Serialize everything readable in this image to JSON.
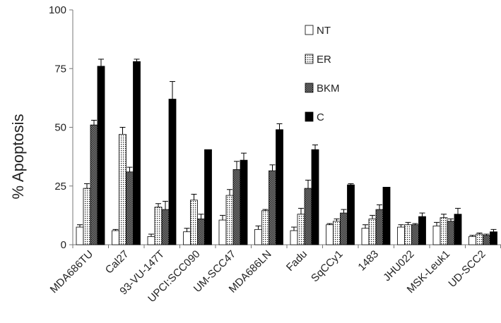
{
  "chart_data": {
    "type": "bar",
    "title": "",
    "xlabel": "",
    "ylabel": "% Apoptosis",
    "ylim": [
      0,
      100
    ],
    "yticks": [
      0,
      25,
      50,
      75,
      100
    ],
    "grid": false,
    "legend_position": "top-right",
    "categories": [
      "MDA686TU",
      "Cal27",
      "93-VU-147T",
      "UPCI:SCC090",
      "UM-SCC47",
      "MDA686LN",
      "Fadu",
      "SqCCy1",
      "1483",
      "JHU022",
      "MSK-Leuk1",
      "UD-SCC2"
    ],
    "series": [
      {
        "name": "NT",
        "pattern": "white",
        "values": [
          7.5,
          6,
          3.5,
          5.5,
          10.5,
          6.5,
          6,
          8.5,
          7,
          7.5,
          8,
          3.5
        ],
        "errors": [
          1,
          0.5,
          1,
          1.5,
          2,
          1.5,
          1.5,
          0.5,
          1.5,
          1,
          1.5,
          0.5
        ]
      },
      {
        "name": "ER",
        "pattern": "dotted",
        "values": [
          24,
          47,
          16,
          19,
          21,
          14.5,
          13,
          10,
          11,
          8.5,
          11.5,
          4.5
        ],
        "errors": [
          2,
          3,
          1.5,
          2.5,
          2.5,
          0.5,
          2.5,
          1,
          1.5,
          1,
          1.5,
          0.5
        ]
      },
      {
        "name": "BKM",
        "pattern": "crosshatch",
        "values": [
          51,
          31,
          15,
          11,
          32,
          31.5,
          24,
          13.5,
          15,
          8.5,
          10,
          4
        ],
        "errors": [
          2,
          2,
          3.5,
          2,
          3.5,
          2.5,
          3.5,
          1.5,
          2,
          0.5,
          1,
          0.5
        ]
      },
      {
        "name": "C",
        "pattern": "black",
        "values": [
          76,
          78,
          62,
          40.5,
          36,
          49,
          40.5,
          25.5,
          24.5,
          12,
          13,
          5.5
        ],
        "errors": [
          3,
          1,
          7.5,
          0,
          3,
          2.5,
          2,
          0.5,
          0,
          1.5,
          2.5,
          1
        ]
      }
    ]
  }
}
